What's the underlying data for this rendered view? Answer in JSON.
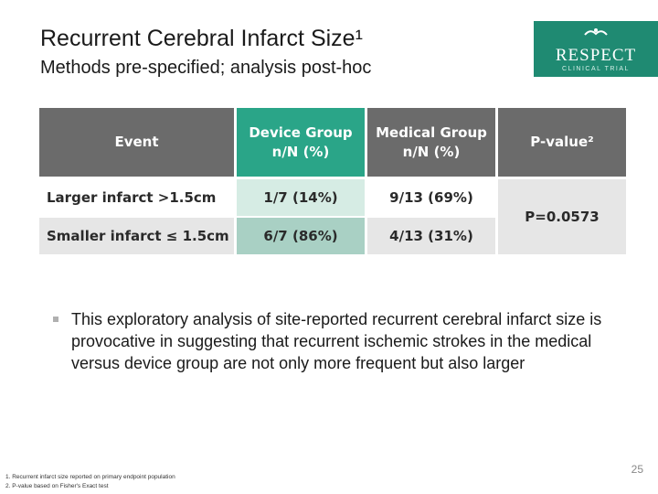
{
  "slide": {
    "title": "Recurrent Cerebral Infarct Size¹",
    "subtitle": "Methods pre-specified; analysis post-hoc",
    "page_number": "25"
  },
  "logo": {
    "name": "RESPECT",
    "tagline": "CLINICAL TRIAL",
    "icon": "bird-icon",
    "color": "#1f8a72"
  },
  "table": {
    "headers": {
      "event": "Event",
      "device": "Device Group\nn/N (%)",
      "medical": "Medical Group\nn/N (%)",
      "pvalue": "P-value²"
    },
    "rows": [
      {
        "event": "Larger infarct >1.5cm",
        "device": "1/7 (14%)",
        "medical": "9/13 (69%)"
      },
      {
        "event": "Smaller infarct ≤ 1.5cm",
        "device": "6/7 (86%)",
        "medical": "4/13 (31%)"
      }
    ],
    "pvalue": "P=0.0573"
  },
  "bullet": "This exploratory analysis of site-reported recurrent cerebral infarct size is provocative in suggesting that recurrent ischemic strokes in the medical versus device group are not only more frequent but also larger",
  "footnotes": [
    "1.   Recurrent infarct size reported on primary endpoint population",
    "2.   P-value based on Fisher's Exact test"
  ]
}
